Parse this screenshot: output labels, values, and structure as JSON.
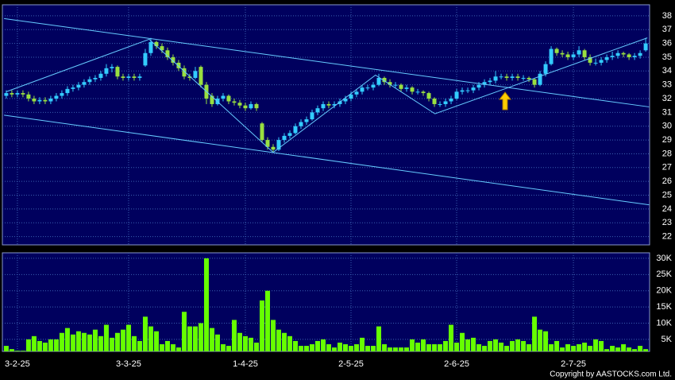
{
  "chart_data": [
    {
      "type": "candlestick",
      "up_color": "#33ccff",
      "down_color": "#99e040",
      "line_color": "#66ccff",
      "xlim": [
        -0.7,
        115.7
      ],
      "ylim": [
        21.4,
        38.8
      ],
      "yticks": [
        22,
        23,
        24,
        25,
        26,
        27,
        28,
        29,
        30,
        31,
        32,
        33,
        34,
        35,
        36,
        37,
        38
      ],
      "xticks": [
        {
          "value": 2,
          "label": "3-2-25"
        },
        {
          "value": 22,
          "label": "3-3-25"
        },
        {
          "value": 43,
          "label": "1-4-25"
        },
        {
          "value": 62,
          "label": "2-5-25"
        },
        {
          "value": 81,
          "label": "2-6-25"
        },
        {
          "value": 102,
          "label": "2-7-25"
        }
      ],
      "ohlc": [
        [
          32.2,
          32.6,
          32.0,
          32.4
        ],
        [
          32.4,
          32.6,
          32.1,
          32.3
        ],
        [
          32.3,
          32.6,
          32.1,
          32.4
        ],
        [
          32.4,
          32.6,
          32.1,
          32.3
        ],
        [
          32.3,
          32.5,
          31.8,
          32.0
        ],
        [
          32.0,
          32.2,
          31.6,
          31.8
        ],
        [
          31.8,
          32.1,
          31.6,
          31.9
        ],
        [
          31.9,
          32.1,
          31.6,
          31.8
        ],
        [
          31.8,
          32.2,
          31.6,
          32.0
        ],
        [
          32.0,
          32.4,
          31.8,
          32.2
        ],
        [
          32.2,
          32.6,
          32.0,
          32.4
        ],
        [
          32.4,
          32.9,
          32.2,
          32.7
        ],
        [
          32.7,
          33.0,
          32.5,
          32.8
        ],
        [
          32.8,
          33.2,
          32.6,
          33.0
        ],
        [
          33.0,
          33.4,
          32.8,
          33.2
        ],
        [
          33.2,
          33.6,
          33.0,
          33.4
        ],
        [
          33.4,
          33.7,
          33.2,
          33.5
        ],
        [
          33.5,
          34.0,
          33.3,
          33.8
        ],
        [
          33.8,
          34.5,
          33.6,
          34.2
        ],
        [
          34.2,
          34.5,
          33.9,
          34.3
        ],
        [
          34.3,
          34.4,
          33.4,
          33.6
        ],
        [
          33.6,
          33.8,
          33.3,
          33.5
        ],
        [
          33.5,
          33.8,
          33.3,
          33.6
        ],
        [
          33.6,
          33.8,
          33.3,
          33.5
        ],
        [
          33.5,
          33.8,
          33.3,
          33.6
        ],
        [
          34.4,
          35.6,
          34.3,
          35.3
        ],
        [
          35.3,
          36.4,
          35.1,
          36.1
        ],
        [
          36.1,
          36.2,
          35.6,
          35.8
        ],
        [
          35.8,
          36.0,
          35.3,
          35.5
        ],
        [
          35.5,
          35.7,
          34.8,
          35.0
        ],
        [
          35.0,
          35.2,
          34.4,
          34.6
        ],
        [
          34.6,
          34.8,
          34.0,
          34.2
        ],
        [
          34.2,
          34.4,
          33.4,
          33.6
        ],
        [
          33.6,
          33.8,
          33.3,
          33.5
        ],
        [
          33.5,
          34.3,
          33.4,
          34.0
        ],
        [
          34.3,
          34.4,
          32.8,
          33.0
        ],
        [
          33.0,
          33.2,
          31.6,
          32.0
        ],
        [
          32.2,
          32.4,
          31.4,
          31.6
        ],
        [
          31.6,
          32.2,
          31.5,
          32.0
        ],
        [
          32.0,
          32.4,
          31.8,
          32.2
        ],
        [
          32.2,
          32.3,
          31.6,
          31.8
        ],
        [
          31.8,
          32.0,
          31.5,
          31.7
        ],
        [
          31.7,
          31.9,
          31.3,
          31.5
        ],
        [
          31.5,
          31.7,
          31.1,
          31.3
        ],
        [
          31.3,
          31.8,
          31.2,
          31.6
        ],
        [
          31.6,
          31.7,
          31.1,
          31.3
        ],
        [
          30.2,
          30.3,
          28.8,
          29.0
        ],
        [
          29.0,
          29.2,
          28.3,
          28.5
        ],
        [
          28.5,
          28.7,
          28.1,
          28.3
        ],
        [
          28.3,
          29.2,
          28.2,
          29.0
        ],
        [
          29.0,
          29.5,
          28.8,
          29.3
        ],
        [
          29.3,
          29.7,
          29.1,
          29.5
        ],
        [
          29.5,
          30.2,
          29.4,
          30.0
        ],
        [
          30.0,
          30.5,
          29.8,
          30.3
        ],
        [
          30.3,
          30.7,
          30.1,
          30.5
        ],
        [
          30.5,
          31.2,
          30.4,
          31.0
        ],
        [
          31.0,
          31.5,
          30.8,
          31.3
        ],
        [
          31.3,
          31.8,
          31.1,
          31.6
        ],
        [
          31.6,
          31.8,
          31.3,
          31.5
        ],
        [
          31.5,
          31.8,
          31.3,
          31.6
        ],
        [
          31.6,
          32.0,
          31.4,
          31.8
        ],
        [
          31.8,
          32.2,
          31.6,
          32.0
        ],
        [
          32.0,
          32.5,
          31.8,
          32.3
        ],
        [
          32.3,
          32.7,
          32.1,
          32.5
        ],
        [
          32.5,
          33.0,
          32.3,
          32.8
        ],
        [
          32.8,
          33.0,
          32.6,
          32.8
        ],
        [
          32.8,
          33.2,
          32.6,
          33.0
        ],
        [
          33.0,
          33.8,
          32.9,
          33.5
        ],
        [
          33.5,
          33.6,
          33.0,
          33.2
        ],
        [
          33.2,
          33.4,
          32.8,
          33.0
        ],
        [
          33.0,
          33.2,
          32.8,
          33.0
        ],
        [
          33.0,
          33.1,
          32.5,
          32.7
        ],
        [
          32.7,
          33.0,
          32.5,
          32.8
        ],
        [
          32.8,
          32.9,
          32.3,
          32.5
        ],
        [
          32.5,
          32.7,
          32.3,
          32.5
        ],
        [
          32.5,
          32.6,
          32.2,
          32.4
        ],
        [
          32.4,
          32.5,
          31.8,
          32.0
        ],
        [
          32.0,
          32.1,
          31.4,
          31.6
        ],
        [
          31.6,
          31.8,
          31.4,
          31.6
        ],
        [
          31.6,
          32.0,
          31.4,
          31.8
        ],
        [
          31.8,
          32.2,
          31.6,
          32.0
        ],
        [
          32.0,
          32.7,
          31.9,
          32.5
        ],
        [
          32.5,
          32.8,
          32.3,
          32.6
        ],
        [
          32.6,
          32.8,
          32.4,
          32.6
        ],
        [
          32.6,
          33.0,
          32.4,
          32.8
        ],
        [
          32.8,
          33.2,
          32.6,
          33.0
        ],
        [
          33.0,
          33.4,
          32.8,
          33.2
        ],
        [
          33.2,
          33.5,
          33.0,
          33.3
        ],
        [
          33.3,
          34.0,
          33.1,
          33.6
        ],
        [
          33.6,
          33.8,
          33.4,
          33.6
        ],
        [
          33.6,
          33.8,
          33.3,
          33.5
        ],
        [
          33.5,
          33.8,
          33.3,
          33.6
        ],
        [
          33.6,
          33.8,
          33.3,
          33.5
        ],
        [
          33.5,
          33.7,
          33.3,
          33.5
        ],
        [
          33.5,
          33.6,
          33.2,
          33.4
        ],
        [
          33.4,
          33.5,
          32.8,
          33.0
        ],
        [
          33.0,
          34.0,
          32.9,
          33.8
        ],
        [
          33.8,
          34.7,
          33.6,
          34.5
        ],
        [
          34.5,
          35.8,
          34.4,
          35.6
        ],
        [
          35.6,
          35.7,
          35.1,
          35.3
        ],
        [
          35.3,
          35.5,
          35.0,
          35.2
        ],
        [
          35.2,
          35.4,
          34.8,
          35.0
        ],
        [
          35.0,
          35.4,
          34.8,
          35.2
        ],
        [
          35.2,
          35.8,
          35.0,
          35.5
        ],
        [
          35.5,
          35.6,
          34.8,
          35.0
        ],
        [
          35.0,
          35.2,
          34.4,
          34.6
        ],
        [
          34.6,
          34.9,
          34.4,
          34.6
        ],
        [
          34.6,
          35.0,
          34.4,
          34.8
        ],
        [
          34.8,
          35.2,
          34.6,
          35.0
        ],
        [
          35.0,
          35.4,
          34.8,
          35.1
        ],
        [
          35.1,
          35.5,
          34.9,
          35.3
        ],
        [
          35.3,
          35.4,
          35.0,
          35.2
        ],
        [
          35.2,
          35.3,
          34.8,
          35.0
        ],
        [
          35.0,
          35.3,
          34.8,
          35.1
        ],
        [
          35.1,
          35.5,
          34.9,
          35.3
        ],
        [
          35.5,
          36.4,
          35.4,
          36.0
        ]
      ],
      "trendlines": [
        {
          "x": [
            -0.4,
            115.6
          ],
          "y": [
            37.8,
            31.4
          ]
        },
        {
          "x": [
            -0.4,
            115.6
          ],
          "y": [
            30.8,
            24.3
          ]
        },
        {
          "x": [
            0,
            25.7,
            48,
            66.4,
            77.1,
            115.3
          ],
          "y": [
            32.5,
            36.3,
            28.1,
            33.7,
            30.9,
            36.4
          ]
        }
      ]
    },
    {
      "type": "bar",
      "color": "#66ff00",
      "xlim": [
        -0.7,
        115.7
      ],
      "ylim": [
        1300,
        31700
      ],
      "yticks": [
        {
          "value": 5000,
          "label": "5K"
        },
        {
          "value": 10000,
          "label": "10K"
        },
        {
          "value": 15000,
          "label": "15K"
        },
        {
          "value": 20000,
          "label": "20K"
        },
        {
          "value": 25000,
          "label": "25K"
        },
        {
          "value": 30000,
          "label": "30K"
        }
      ],
      "values": [
        3000,
        2000,
        1500,
        1500,
        5000,
        6000,
        4500,
        4000,
        5000,
        5000,
        7000,
        8500,
        6500,
        7500,
        7000,
        6500,
        8000,
        6000,
        9500,
        5500,
        7000,
        8000,
        9500,
        6000,
        4500,
        12000,
        9000,
        7500,
        3500,
        4500,
        3500,
        2500,
        13500,
        9000,
        9000,
        10000,
        30000,
        8500,
        6500,
        3500,
        3000,
        11000,
        7000,
        6000,
        5500,
        4000,
        17000,
        20000,
        11000,
        8000,
        7000,
        6000,
        4500,
        3000,
        3000,
        3500,
        4500,
        5000,
        3500,
        2500,
        4000,
        3500,
        3000,
        3500,
        5500,
        3000,
        3000,
        9000,
        3500,
        2500,
        2500,
        2500,
        2500,
        5000,
        4000,
        5000,
        3500,
        3500,
        3500,
        4500,
        9500,
        4000,
        7000,
        5000,
        5500,
        3500,
        3000,
        4500,
        5000,
        4000,
        3000,
        4500,
        5000,
        4500,
        3500,
        12000,
        8000,
        7500,
        3500,
        4500,
        2500,
        3500,
        3000,
        3500,
        4000,
        3000,
        5000,
        4500,
        2000,
        3000,
        2500,
        3500,
        2500,
        2000,
        3000,
        2000
      ]
    }
  ],
  "copyright": "Copyright by AASTOCKS.com Ltd."
}
